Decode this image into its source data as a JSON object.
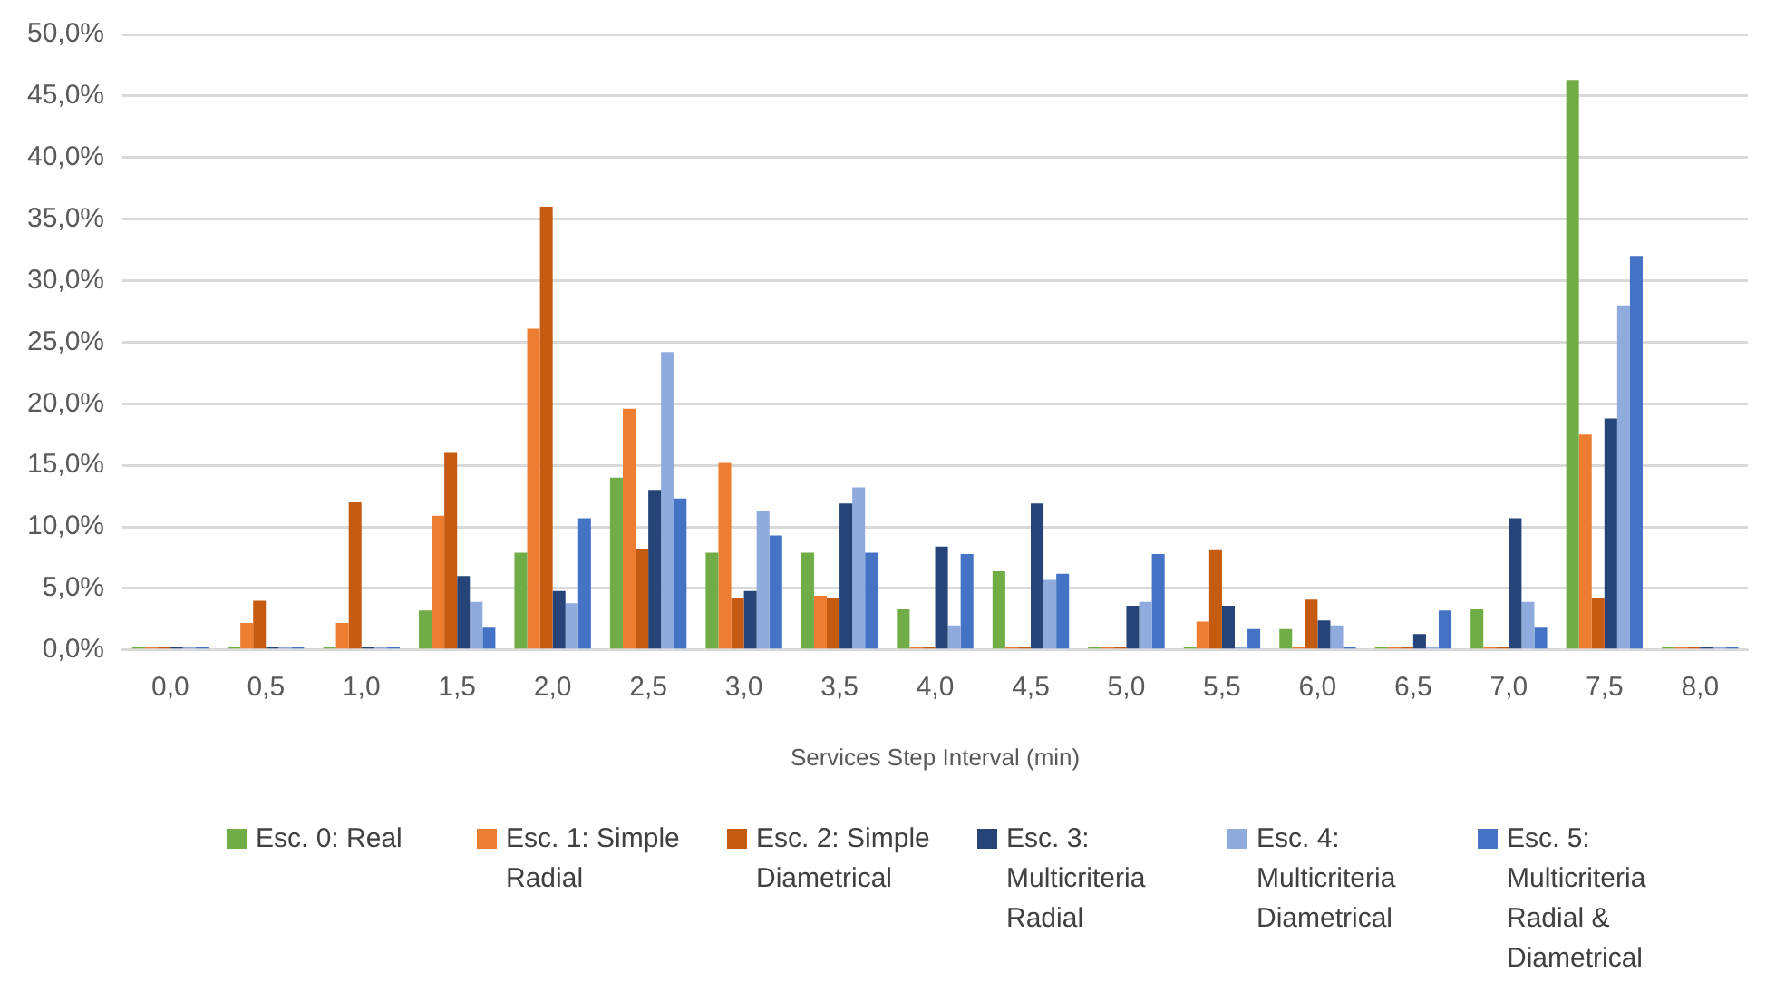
{
  "chart_data": {
    "type": "bar",
    "xlabel": "Services Step Interval (min)",
    "categories": [
      "0,0",
      "0,5",
      "1,0",
      "1,5",
      "2,0",
      "2,5",
      "3,0",
      "3,5",
      "4,0",
      "4,5",
      "5,0",
      "5,5",
      "6,0",
      "6,5",
      "7,0",
      "7,5",
      "8,0"
    ],
    "series": [
      {
        "name": "Esc. 0: Real",
        "color": "#70ad47",
        "values": [
          0.2,
          0.2,
          0.2,
          3.2,
          7.9,
          14.0,
          7.9,
          7.9,
          3.3,
          6.4,
          0.2,
          0.2,
          1.7,
          0.2,
          3.3,
          46.3,
          0.2
        ]
      },
      {
        "name": "Esc. 1: Simple Radial",
        "color": "#ed7d31",
        "values": [
          0.2,
          2.2,
          2.2,
          10.9,
          26.1,
          19.6,
          15.2,
          4.4,
          0.2,
          0.2,
          0.2,
          2.3,
          0.2,
          0.2,
          0.2,
          17.5,
          0.2
        ]
      },
      {
        "name": "Esc. 2: Simple Diametrical",
        "color": "#c55a11",
        "values": [
          0.2,
          4.0,
          12.0,
          16.0,
          36.0,
          8.2,
          4.2,
          4.2,
          0.2,
          0.2,
          0.2,
          8.1,
          4.1,
          0.2,
          0.2,
          4.2,
          0.2
        ]
      },
      {
        "name": "Esc. 3: Multicriteria Radial",
        "color": "#264478",
        "values": [
          0.2,
          0.2,
          0.2,
          6.0,
          4.8,
          13.0,
          4.8,
          11.9,
          8.4,
          11.9,
          3.6,
          3.6,
          2.4,
          1.3,
          10.7,
          18.8,
          0.2
        ]
      },
      {
        "name": "Esc. 4: Multicriteria Diametrical",
        "color": "#8faadc",
        "values": [
          0.2,
          0.2,
          0.2,
          3.9,
          3.8,
          24.2,
          11.3,
          13.2,
          2.0,
          5.7,
          3.9,
          0.2,
          2.0,
          0.2,
          3.9,
          28.0,
          0.2
        ]
      },
      {
        "name": "Esc. 5: Multicriteria Radial & Diametrical",
        "color": "#4472c4",
        "values": [
          0.2,
          0.2,
          0.2,
          1.8,
          10.7,
          12.3,
          9.3,
          7.9,
          7.8,
          6.2,
          7.8,
          1.7,
          0.2,
          3.2,
          1.8,
          32.0,
          0.2
        ]
      }
    ],
    "ylim": [
      0,
      50
    ],
    "yticks": [
      {
        "value": 0,
        "label": "0,0%"
      },
      {
        "value": 5,
        "label": "5,0%"
      },
      {
        "value": 10,
        "label": "10,0%"
      },
      {
        "value": 15,
        "label": "15,0%"
      },
      {
        "value": 20,
        "label": "20,0%"
      },
      {
        "value": 25,
        "label": "25,0%"
      },
      {
        "value": 30,
        "label": "30,0%"
      },
      {
        "value": 35,
        "label": "35,0%"
      },
      {
        "value": 40,
        "label": "40,0%"
      },
      {
        "value": 45,
        "label": "45,0%"
      },
      {
        "value": 50,
        "label": "50,0%"
      }
    ],
    "grid": "y",
    "legend": "bottom"
  }
}
